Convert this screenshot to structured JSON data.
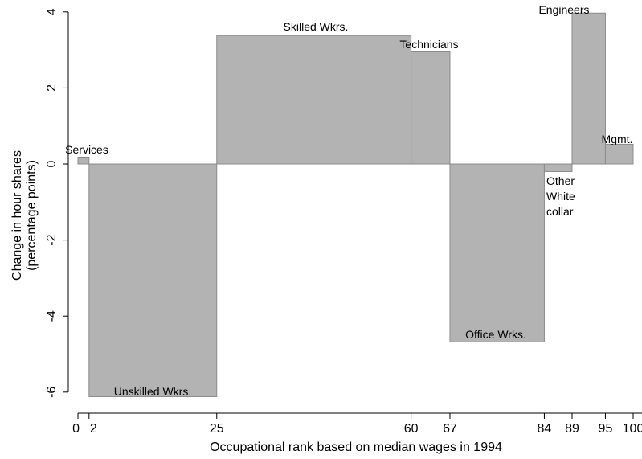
{
  "chart_data": {
    "type": "bar",
    "xlabel": "Occupational rank based on median wages in 1994",
    "ylabel_lines": [
      "Change in hour shares",
      "(percentage points)"
    ],
    "xlim": [
      0,
      100
    ],
    "ylim": [
      -6.3,
      4.25
    ],
    "x_ticks": [
      {
        "value": 0,
        "label": "0"
      },
      {
        "value": 2,
        "label": "2"
      },
      {
        "value": 25,
        "label": "25"
      },
      {
        "value": 60,
        "label": "60"
      },
      {
        "value": 67,
        "label": "67"
      },
      {
        "value": 84,
        "label": "84"
      },
      {
        "value": 89,
        "label": "89"
      },
      {
        "value": 95,
        "label": "95"
      },
      {
        "value": 100,
        "label": "100"
      }
    ],
    "y_ticks": [
      {
        "value": -6,
        "label": "-6"
      },
      {
        "value": -4,
        "label": "-4"
      },
      {
        "value": -2,
        "label": "-2"
      },
      {
        "value": 0,
        "label": "0"
      },
      {
        "value": 2,
        "label": "2"
      },
      {
        "value": 4,
        "label": "4"
      }
    ],
    "bars": [
      {
        "label": "Services",
        "x0": 0,
        "x1": 2,
        "value": 0.18
      },
      {
        "label": "Unskilled Wkrs.",
        "x0": 2,
        "x1": 25,
        "value": -6.12
      },
      {
        "label": "Skilled Wkrs.",
        "x0": 25,
        "x1": 60,
        "value": 3.38
      },
      {
        "label": "Technicians",
        "x0": 60,
        "x1": 67,
        "value": 2.95
      },
      {
        "label": "Office Wrks.",
        "x0": 67,
        "x1": 84,
        "value": -4.68
      },
      {
        "label": "Other White collar",
        "x0": 84,
        "x1": 89,
        "value": -0.2
      },
      {
        "label": "Engineers",
        "x0": 89,
        "x1": 95,
        "value": 3.97
      },
      {
        "label": "Mgmt.",
        "x0": 95,
        "x1": 100,
        "value": 0.52
      }
    ],
    "bar_color": "#b3b3b3",
    "bar_stroke": "#8c8c8c",
    "grid": false
  }
}
